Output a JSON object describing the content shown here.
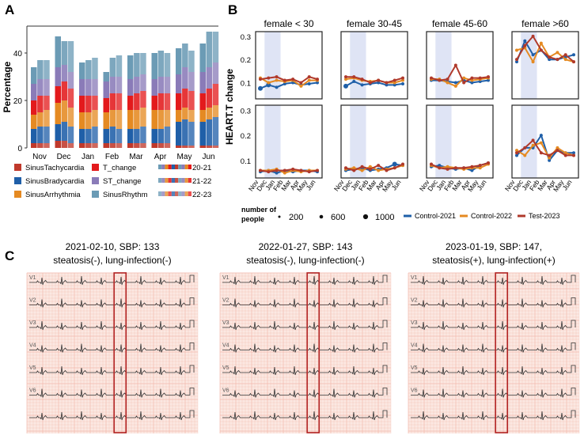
{
  "panel_labels": {
    "a": "A",
    "b": "B",
    "c": "C"
  },
  "colors": {
    "SinusTachycardia": "#c0392b",
    "T_change": "#e31a1c",
    "SinusBradycardia": "#1f5fa8",
    "ST_change": "#8a7bb8",
    "SinusArrhythmia": "#e58a22",
    "SinusRhythm": "#6b9bb5",
    "Control-2021": "#1f5fa8",
    "Control-2022": "#e58a22",
    "Test-2023": "#b0392b",
    "highlight": "#dfe4f5",
    "ecg_bg": "#fbe8e2",
    "ecg_grid": "#f2b9ad",
    "ecg_box": "#b22222"
  },
  "chart_data": [
    {
      "id": "A",
      "type": "bar",
      "ylabel": "Percentage",
      "yticks": [
        "0",
        "20",
        "40"
      ],
      "ylim": [
        0,
        50
      ],
      "categories": [
        "Nov",
        "Dec",
        "Jan",
        "Feb",
        "Mar",
        "Apr",
        "May",
        "Jun"
      ],
      "cohorts": [
        "20-21",
        "21-22",
        "22-23"
      ],
      "series": [
        {
          "name": "SinusTachycardia",
          "values": [
            [
              2,
              2,
              2
            ],
            [
              3,
              3,
              2
            ],
            [
              2,
              2,
              2
            ],
            [
              2,
              2,
              2
            ],
            [
              2,
              2,
              2
            ],
            [
              2,
              2,
              2
            ],
            [
              1,
              1,
              1
            ],
            [
              1,
              1,
              1
            ]
          ]
        },
        {
          "name": "SinusBradycardia",
          "values": [
            [
              6,
              7,
              7
            ],
            [
              7,
              8,
              7
            ],
            [
              6,
              6,
              7
            ],
            [
              6,
              7,
              6
            ],
            [
              6,
              6,
              7
            ],
            [
              6,
              6,
              7
            ],
            [
              10,
              11,
              10
            ],
            [
              10,
              11,
              12
            ]
          ]
        },
        {
          "name": "SinusArrhythmia",
          "values": [
            [
              6,
              6,
              7
            ],
            [
              9,
              9,
              8
            ],
            [
              7,
              7,
              7
            ],
            [
              7,
              7,
              8
            ],
            [
              8,
              8,
              8
            ],
            [
              8,
              8,
              7
            ],
            [
              5,
              5,
              5
            ],
            [
              5,
              5,
              5
            ]
          ]
        },
        {
          "name": "T_change",
          "values": [
            [
              6,
              7,
              6
            ],
            [
              7,
              8,
              8
            ],
            [
              7,
              7,
              6
            ],
            [
              6,
              7,
              7
            ],
            [
              6,
              7,
              7
            ],
            [
              6,
              7,
              7
            ],
            [
              7,
              8,
              8
            ],
            [
              7,
              8,
              9
            ]
          ]
        },
        {
          "name": "ST_change",
          "values": [
            [
              7,
              7,
              7
            ],
            [
              8,
              7,
              7
            ],
            [
              7,
              7,
              7
            ],
            [
              7,
              7,
              7
            ],
            [
              7,
              7,
              7
            ],
            [
              7,
              7,
              7
            ],
            [
              8,
              9,
              8
            ],
            [
              9,
              9,
              9
            ]
          ]
        },
        {
          "name": "SinusRhythm",
          "values": [
            [
              7,
              8,
              8
            ],
            [
              13,
              10,
              13
            ],
            [
              7,
              8,
              9
            ],
            [
              4,
              8,
              9
            ],
            [
              10,
              10,
              9
            ],
            [
              11,
              11,
              10
            ],
            [
              11,
              10,
              9
            ],
            [
              12,
              15,
              13
            ]
          ]
        }
      ],
      "legend": {
        "items": [
          "SinusTachycardia",
          "T_change",
          "SinusBradycardia",
          "ST_change",
          "SinusArrhythmia",
          "SinusRhythm"
        ],
        "swatch_labels": [
          "20-21",
          "21-22",
          "22-23"
        ]
      }
    },
    {
      "id": "B",
      "type": "line",
      "ylabel": "HEART.T change",
      "yticks": [
        "0.1",
        "0.2",
        "0.3"
      ],
      "ylim": [
        0.03,
        0.32
      ],
      "months": [
        "Nov",
        "Dec",
        "Jan",
        "Feb",
        "Mar",
        "Apr",
        "May",
        "Jun"
      ],
      "highlight_range": [
        "Dec",
        "Jan"
      ],
      "titles": [
        "female < 30",
        "female 30-45",
        "female 45-60",
        "female >60"
      ],
      "series_names": [
        "Control-2021",
        "Control-2022",
        "Test-2023"
      ],
      "panels": [
        [
          {
            "values": [
              [
                0.075,
                0.09,
                0.08,
                0.095,
                0.1,
                0.09,
                0.095,
                0.1
              ],
              [
                0.12,
                0.1,
                0.11,
                0.105,
                0.11,
                0.085,
                0.11,
                0.11
              ],
              [
                0.115,
                0.12,
                0.125,
                0.11,
                0.115,
                0.1,
                0.125,
                0.115
              ]
            ],
            "sizes": [
              [
                3,
                3,
                2,
                2,
                2,
                2,
                2,
                2
              ],
              [
                2,
                2,
                2,
                2,
                2,
                2,
                2,
                2
              ],
              [
                2,
                2,
                2,
                2,
                2,
                2,
                2,
                2
              ]
            ]
          },
          {
            "values": [
              [
                0.085,
                0.105,
                0.09,
                0.095,
                0.1,
                0.09,
                0.09,
                0.095
              ],
              [
                0.115,
                0.12,
                0.11,
                0.105,
                0.11,
                0.1,
                0.1,
                0.11
              ],
              [
                0.125,
                0.125,
                0.115,
                0.1,
                0.11,
                0.1,
                0.11,
                0.12
              ]
            ],
            "sizes": [
              [
                3,
                2,
                2,
                2,
                2,
                2,
                2,
                2
              ],
              [
                2,
                2,
                2,
                2,
                2,
                2,
                2,
                2
              ],
              [
                2,
                2,
                2,
                2,
                2,
                2,
                2,
                2
              ]
            ]
          },
          {
            "values": [
              [
                0.11,
                0.11,
                0.105,
                0.1,
                0.11,
                0.1,
                0.105,
                0.11
              ],
              [
                0.115,
                0.115,
                0.1,
                0.085,
                0.12,
                0.11,
                0.115,
                0.12
              ],
              [
                0.12,
                0.11,
                0.115,
                0.175,
                0.1,
                0.12,
                0.12,
                0.125
              ]
            ],
            "sizes": [
              [
                2,
                2,
                2,
                2,
                2,
                2,
                2,
                2
              ],
              [
                2,
                2,
                2,
                2,
                2,
                2,
                2,
                2
              ],
              [
                2,
                2,
                2,
                2,
                2,
                2,
                2,
                2
              ]
            ]
          },
          {
            "values": [
              [
                0.19,
                0.28,
                0.22,
                0.24,
                0.2,
                0.2,
                0.21,
                0.22
              ],
              [
                0.24,
                0.25,
                0.19,
                0.27,
                0.21,
                0.23,
                0.2,
                0.19
              ],
              [
                0.2,
                0.26,
                0.3,
                0.24,
                0.21,
                0.2,
                0.22,
                0.19
              ]
            ],
            "sizes": [
              [
                2,
                2,
                2,
                2,
                2,
                2,
                2,
                2
              ],
              [
                2,
                2,
                2,
                2,
                2,
                2,
                2,
                2
              ],
              [
                2,
                2,
                2,
                2,
                2,
                2,
                2,
                2
              ]
            ]
          }
        ],
        [
          {
            "values": [
              [
                0.055,
                0.06,
                0.05,
                0.06,
                0.055,
                0.06,
                0.06,
                0.055
              ],
              [
                0.06,
                0.06,
                0.065,
                0.05,
                0.06,
                0.055,
                0.06,
                0.06
              ],
              [
                0.06,
                0.055,
                0.06,
                0.06,
                0.065,
                0.06,
                0.055,
                0.06
              ]
            ],
            "sizes": [
              [
                2,
                2,
                2,
                2,
                2,
                2,
                2,
                2
              ],
              [
                2,
                2,
                2,
                2,
                2,
                2,
                2,
                2
              ],
              [
                2,
                2,
                2,
                2,
                2,
                2,
                2,
                2
              ]
            ]
          },
          {
            "values": [
              [
                0.06,
                0.065,
                0.07,
                0.06,
                0.065,
                0.07,
                0.085,
                0.08
              ],
              [
                0.065,
                0.07,
                0.06,
                0.075,
                0.06,
                0.065,
                0.07,
                0.08
              ],
              [
                0.07,
                0.06,
                0.075,
                0.065,
                0.08,
                0.06,
                0.07,
                0.085
              ]
            ],
            "sizes": [
              [
                2,
                2,
                2,
                2,
                2,
                2,
                3,
                2
              ],
              [
                2,
                2,
                2,
                2,
                2,
                2,
                2,
                2
              ],
              [
                2,
                2,
                2,
                2,
                2,
                2,
                2,
                2
              ]
            ]
          },
          {
            "values": [
              [
                0.075,
                0.08,
                0.07,
                0.065,
                0.07,
                0.06,
                0.08,
                0.09
              ],
              [
                0.08,
                0.07,
                0.075,
                0.07,
                0.065,
                0.07,
                0.07,
                0.085
              ],
              [
                0.085,
                0.07,
                0.065,
                0.07,
                0.07,
                0.075,
                0.08,
                0.09
              ]
            ],
            "sizes": [
              [
                2,
                2,
                2,
                2,
                2,
                2,
                2,
                2
              ],
              [
                2,
                2,
                2,
                2,
                2,
                2,
                2,
                2
              ],
              [
                2,
                2,
                2,
                2,
                2,
                2,
                2,
                2
              ]
            ]
          },
          {
            "values": [
              [
                0.12,
                0.15,
                0.15,
                0.2,
                0.1,
                0.14,
                0.13,
                0.13
              ],
              [
                0.14,
                0.12,
                0.16,
                0.17,
                0.11,
                0.15,
                0.13,
                0.12
              ],
              [
                0.13,
                0.15,
                0.18,
                0.13,
                0.12,
                0.14,
                0.12,
                0.12
              ]
            ],
            "sizes": [
              [
                2,
                2,
                2,
                2,
                2,
                2,
                2,
                2
              ],
              [
                2,
                2,
                2,
                2,
                2,
                2,
                2,
                2
              ],
              [
                2,
                2,
                2,
                2,
                2,
                2,
                2,
                2
              ]
            ]
          }
        ]
      ],
      "size_legend": {
        "title_line1": "number of",
        "title_line2": "people",
        "values": [
          "200",
          "600",
          "1000"
        ]
      }
    }
  ],
  "ecg": [
    {
      "title_line1": "2021-02-10, SBP: 133",
      "title_line2": "steatosis(-), lung-infection(-)",
      "leads": [
        "V1",
        "V2",
        "V3",
        "V4",
        "V5",
        "V6",
        ""
      ]
    },
    {
      "title_line1": "2022-01-27, SBP: 143",
      "title_line2": "steatosis(-), lung-infection(-)",
      "leads": [
        "V1",
        "V2",
        "V3",
        "V4",
        "V5",
        "V6",
        ""
      ]
    },
    {
      "title_line1": "2023-01-19, SBP: 147,",
      "title_line2": "steatosis(+), lung-infection(+)",
      "leads": [
        "V1",
        "V2",
        "V3",
        "V4",
        "V5",
        "V6",
        ""
      ]
    }
  ]
}
